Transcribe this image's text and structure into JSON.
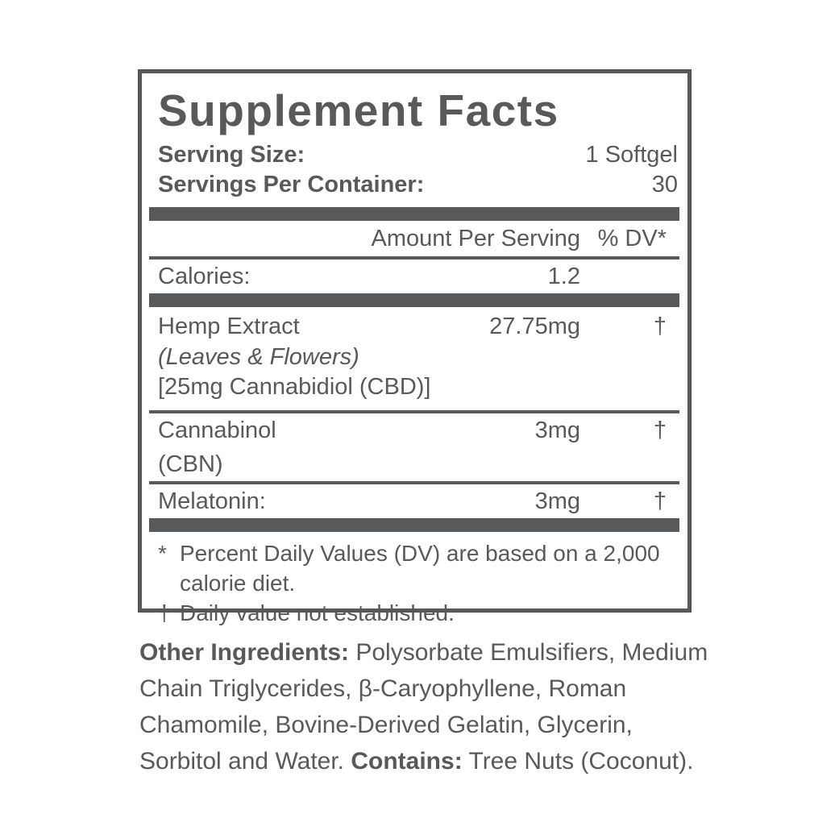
{
  "panel": {
    "title": "Supplement Facts",
    "serving_size_label": "Serving Size:",
    "serving_size_value": "1 Softgel",
    "servings_per_container_label": "Servings Per Container:",
    "servings_per_container_value": "30",
    "columns": {
      "amount": "Amount Per Serving",
      "dv": "% DV*"
    },
    "calories": {
      "label": "Calories:",
      "amount": "1.2",
      "dv": ""
    },
    "rows": [
      {
        "name": "Hemp Extract",
        "sub_italic": "(Leaves & Flowers)",
        "sub_note": "[25mg Cannabidiol (CBD)]",
        "amount": "27.75mg",
        "dv": "†"
      },
      {
        "name": "Cannabinol (CBN)",
        "amount": "3mg",
        "dv": "†"
      },
      {
        "name": "Melatonin:",
        "amount": "3mg",
        "dv": "†"
      }
    ],
    "footnotes": [
      {
        "symbol": "*",
        "text": "Percent Daily Values (DV) are based on a 2,000 calorie diet."
      },
      {
        "symbol": "†",
        "text": "Daily value not established."
      }
    ]
  },
  "other_ingredients": {
    "label": "Other Ingredients:",
    "text": " Polysorbate Emulsifiers, Medium Chain Triglycerides, β-Caryophyllene, Roman Chamomile, Bovine-Derived Gelatin, Glycerin, Sorbitol and Water. ",
    "contains_label": "Contains:",
    "contains_text": " Tree Nuts (Coconut)."
  },
  "colors": {
    "ink": "#58595b",
    "background": "#ffffff"
  }
}
